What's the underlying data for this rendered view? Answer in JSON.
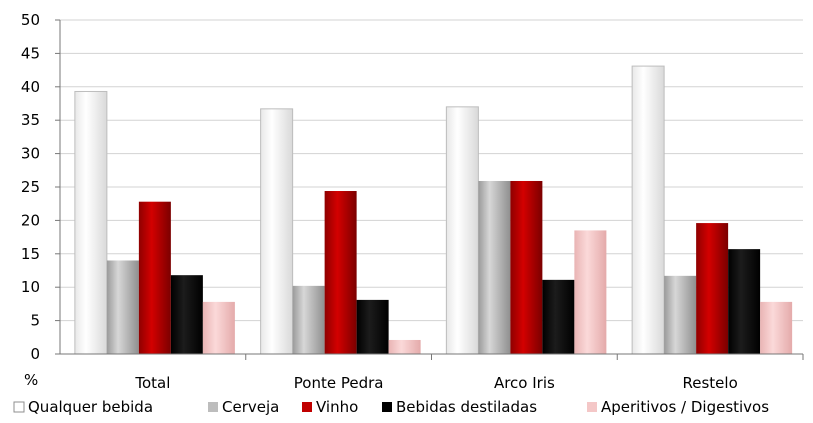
{
  "chart_data": {
    "type": "bar",
    "title": "",
    "xlabel": "",
    "ylabel": "%",
    "ylim": [
      0,
      50
    ],
    "yticks": [
      0,
      5,
      10,
      15,
      20,
      25,
      30,
      35,
      40,
      45,
      50
    ],
    "grid": true,
    "legend_position": "bottom",
    "categories": [
      "Total",
      "Ponte Pedra",
      "Arco Iris",
      "Restelo"
    ],
    "series": [
      {
        "name": "Qualquer bebida",
        "color": "#ffffff",
        "values": [
          39.3,
          36.7,
          37.0,
          43.1
        ]
      },
      {
        "name": "Cerveja",
        "color": "#bdbdbd",
        "values": [
          14.0,
          10.2,
          25.9,
          11.7
        ]
      },
      {
        "name": "Vinho",
        "color": "#c00000",
        "values": [
          22.8,
          24.4,
          25.9,
          19.6
        ]
      },
      {
        "name": "Bebidas destiladas",
        "color": "#000000",
        "values": [
          11.8,
          8.1,
          11.1,
          15.7
        ]
      },
      {
        "name": "Aperitivos / Digestivos",
        "color": "#f4c7c7",
        "values": [
          7.8,
          2.1,
          18.5,
          7.8
        ]
      }
    ]
  }
}
